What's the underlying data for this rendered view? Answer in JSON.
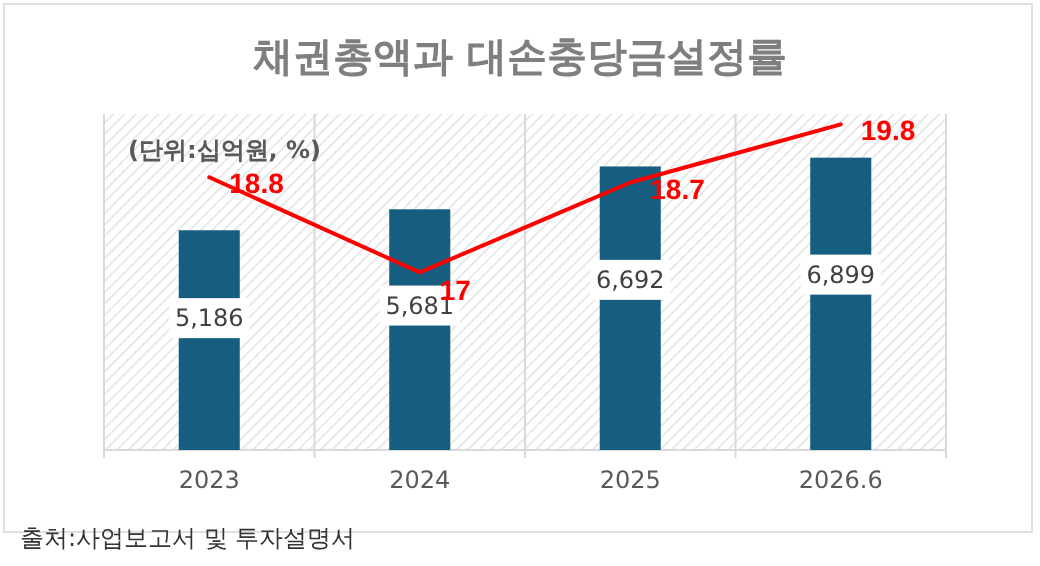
{
  "chart_data": {
    "type": "bar",
    "title": "채권총액과 대손충당금설정률",
    "categories": [
      "2023",
      "2024",
      "2025",
      "2026.6"
    ],
    "series": [
      {
        "color": "#165e80",
        "values": [
          5186,
          5681,
          6692,
          6899
        ],
        "value_labels": [
          "5,186",
          "5,681",
          "6,692",
          "6,899"
        ]
      },
      {
        "type": "line",
        "axis": "y2",
        "color": "#ff0000",
        "values": [
          18.8,
          17,
          18.7,
          19.8
        ],
        "value_labels": [
          "18.8",
          "17",
          "18.7",
          "19.8"
        ]
      }
    ],
    "marker": "none",
    "line_style": "solid",
    "tick_labels": "x",
    "annotations": [
      "(단위:십억원, %)",
      "출처:사업보고서 및 투자설명서"
    ]
  }
}
